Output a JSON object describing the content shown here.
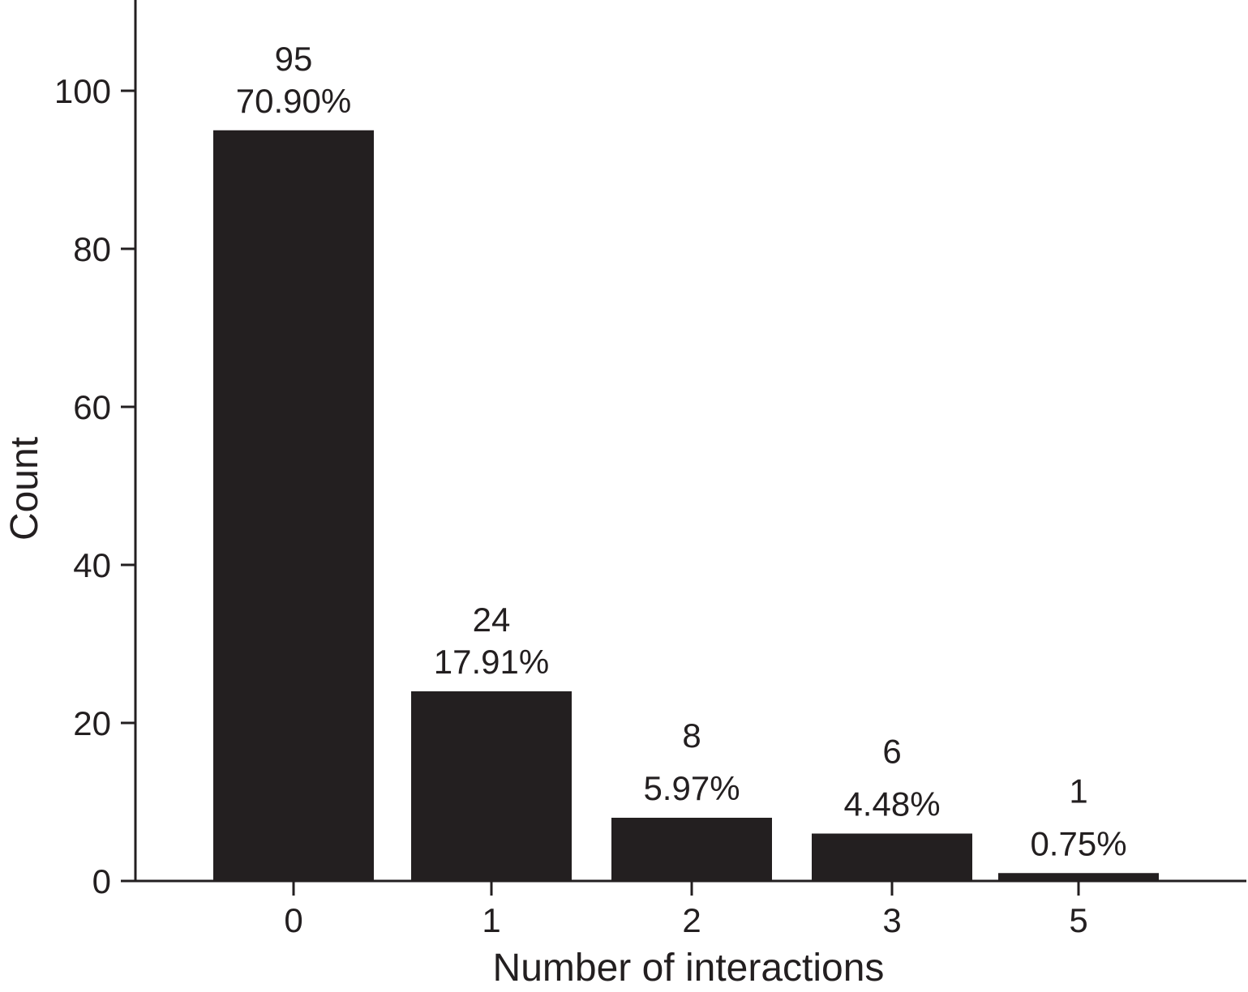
{
  "chart_data": {
    "type": "bar",
    "categories": [
      "0",
      "1",
      "2",
      "3",
      "5"
    ],
    "values": [
      95,
      24,
      8,
      6,
      1
    ],
    "percent_labels": [
      "70.90%",
      "17.91%",
      "5.97%",
      "4.48%",
      "0.75%"
    ],
    "count_labels": [
      "95",
      "24",
      "8",
      "6",
      "1"
    ],
    "xlabel": "Number of interactions",
    "ylabel": "Count",
    "ylim": [
      0,
      110
    ],
    "yticks": [
      0,
      20,
      40,
      60,
      80,
      100
    ],
    "grid": false,
    "bar_color": "#231f20",
    "axis_color": "#231f20"
  }
}
